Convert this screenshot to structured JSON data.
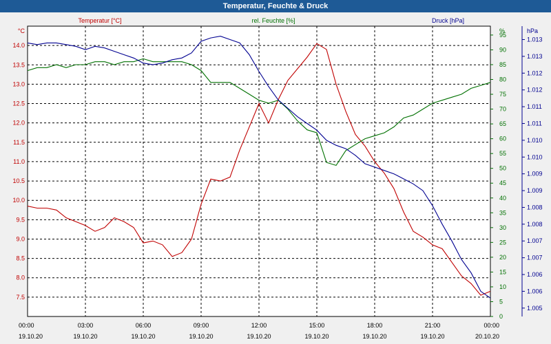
{
  "title": "Temperatur, Feuchte & Druck",
  "chart_data": {
    "type": "line",
    "title": "Temperatur, Feuchte & Druck",
    "x_ticks": [
      {
        "time": "00:00",
        "date": "19.10.20"
      },
      {
        "time": "03:00",
        "date": "19.10.20"
      },
      {
        "time": "06:00",
        "date": "19.10.20"
      },
      {
        "time": "09:00",
        "date": "19.10.20"
      },
      {
        "time": "12:00",
        "date": "19.10.20"
      },
      {
        "time": "15:00",
        "date": "19.10.20"
      },
      {
        "time": "18:00",
        "date": "19.10.20"
      },
      {
        "time": "21:00",
        "date": "19.10.20"
      },
      {
        "time": "00:00",
        "date": "20.10.20"
      }
    ],
    "xlim": [
      0,
      24
    ],
    "axes": {
      "temperature": {
        "unit": "°C",
        "min": 7.0,
        "max": 14.5,
        "ticks": [
          "7.5",
          "8.0",
          "8.5",
          "9.0",
          "9.5",
          "10.0",
          "10.5",
          "11.0",
          "11.5",
          "12.0",
          "12.5",
          "13.0",
          "13.5",
          "14.0"
        ],
        "color": "#c00000"
      },
      "humidity": {
        "unit": "%",
        "min": 0,
        "max": 98,
        "ticks": [
          "0",
          "5",
          "10",
          "15",
          "20",
          "25",
          "30",
          "35",
          "40",
          "45",
          "50",
          "55",
          "60",
          "65",
          "70",
          "75",
          "80",
          "85",
          "90",
          "95"
        ],
        "tick_values": [
          0,
          5,
          10,
          15,
          20,
          25,
          30,
          35,
          40,
          45,
          50,
          55,
          60,
          65,
          70,
          75,
          80,
          85,
          90,
          95
        ],
        "color": "#007000"
      },
      "pressure": {
        "unit": "hPa",
        "min": 1004.75,
        "max": 1013.4,
        "ticks": [
          "1.005",
          "1.006",
          "1.006",
          "1.007",
          "1.007",
          "1.008",
          "1.008",
          "1.009",
          "1.009",
          "1.010",
          "1.010",
          "1.011",
          "1.011",
          "1.012",
          "1.012",
          "1.013",
          "1.013"
        ],
        "tick_values": [
          1005.0,
          1005.5,
          1006.0,
          1006.5,
          1007.0,
          1007.5,
          1008.0,
          1008.5,
          1009.0,
          1009.5,
          1010.0,
          1010.5,
          1011.0,
          1011.5,
          1012.0,
          1012.5,
          1013.0
        ],
        "color": "#000090"
      }
    },
    "series": [
      {
        "name": "Temperatur [°C]",
        "axis": "temperature",
        "color": "#c00000",
        "x": [
          0,
          0.5,
          1,
          1.5,
          2,
          2.5,
          3,
          3.5,
          4,
          4.5,
          5,
          5.5,
          6,
          6.5,
          7,
          7.5,
          8,
          8.5,
          9,
          9.5,
          10,
          10.5,
          11,
          11.5,
          12,
          12.5,
          13,
          13.5,
          14,
          14.5,
          15,
          15.5,
          16,
          16.5,
          17,
          17.5,
          18,
          18.5,
          19,
          19.5,
          20,
          20.5,
          21,
          21.5,
          22,
          22.5,
          23,
          23.5,
          24
        ],
        "values": [
          9.85,
          9.8,
          9.8,
          9.75,
          9.55,
          9.45,
          9.35,
          9.2,
          9.3,
          9.55,
          9.45,
          9.3,
          8.9,
          8.95,
          8.85,
          8.55,
          8.65,
          9.0,
          9.9,
          10.55,
          10.5,
          10.6,
          11.3,
          11.9,
          12.5,
          12.0,
          12.6,
          13.1,
          13.4,
          13.7,
          14.05,
          13.9,
          13.0,
          12.3,
          11.7,
          11.4,
          11.0,
          10.7,
          10.3,
          9.7,
          9.2,
          9.05,
          8.85,
          8.75,
          8.4,
          8.05,
          7.85,
          7.55,
          7.65
        ]
      },
      {
        "name": "rel. Feuchte [%]",
        "axis": "humidity",
        "color": "#007000",
        "x": [
          0,
          0.5,
          1,
          1.5,
          2,
          2.5,
          3,
          3.5,
          4,
          4.5,
          5,
          5.5,
          6,
          6.5,
          7,
          7.5,
          8,
          8.5,
          9,
          9.5,
          10,
          10.5,
          11,
          11.5,
          12,
          12.5,
          13,
          13.5,
          14,
          14.5,
          15,
          15.5,
          16,
          16.5,
          17,
          17.5,
          18,
          18.5,
          19,
          19.5,
          20,
          20.5,
          21,
          21.5,
          22,
          22.5,
          23,
          23.5,
          24
        ],
        "values": [
          83,
          84,
          84,
          85,
          84,
          85,
          85,
          86,
          86,
          85,
          86,
          86,
          87,
          86,
          86,
          86,
          86,
          85,
          83,
          79,
          79,
          79,
          77,
          75,
          73,
          72,
          73,
          70,
          66,
          63,
          62,
          52,
          51,
          56,
          58,
          60,
          61,
          62,
          64,
          67,
          68,
          70,
          72,
          73,
          74,
          75,
          77,
          78,
          79
        ]
      },
      {
        "name": "Druck [hPa]",
        "axis": "pressure",
        "color": "#000090",
        "x": [
          0,
          0.5,
          1,
          1.5,
          2,
          2.5,
          3,
          3.5,
          4,
          4.5,
          5,
          5.5,
          6,
          6.5,
          7,
          7.5,
          8,
          8.5,
          9,
          9.5,
          10,
          10.5,
          11,
          11.5,
          12,
          12.5,
          13,
          13.5,
          14,
          14.5,
          15,
          15.5,
          16,
          16.5,
          17,
          17.5,
          18,
          18.5,
          19,
          19.5,
          20,
          20.5,
          21,
          21.5,
          22,
          22.5,
          23,
          23.5,
          24
        ],
        "values": [
          1012.9,
          1012.85,
          1012.9,
          1012.9,
          1012.85,
          1012.8,
          1012.7,
          1012.8,
          1012.75,
          1012.65,
          1012.55,
          1012.45,
          1012.3,
          1012.25,
          1012.3,
          1012.4,
          1012.45,
          1012.6,
          1012.95,
          1013.05,
          1013.1,
          1013.0,
          1012.9,
          1012.55,
          1012.05,
          1011.6,
          1011.2,
          1010.95,
          1010.7,
          1010.5,
          1010.3,
          1010.0,
          1009.85,
          1009.75,
          1009.55,
          1009.3,
          1009.2,
          1009.1,
          1009.0,
          1008.85,
          1008.7,
          1008.5,
          1008.05,
          1007.5,
          1007.0,
          1006.45,
          1006.05,
          1005.5,
          1005.3
        ]
      }
    ]
  }
}
